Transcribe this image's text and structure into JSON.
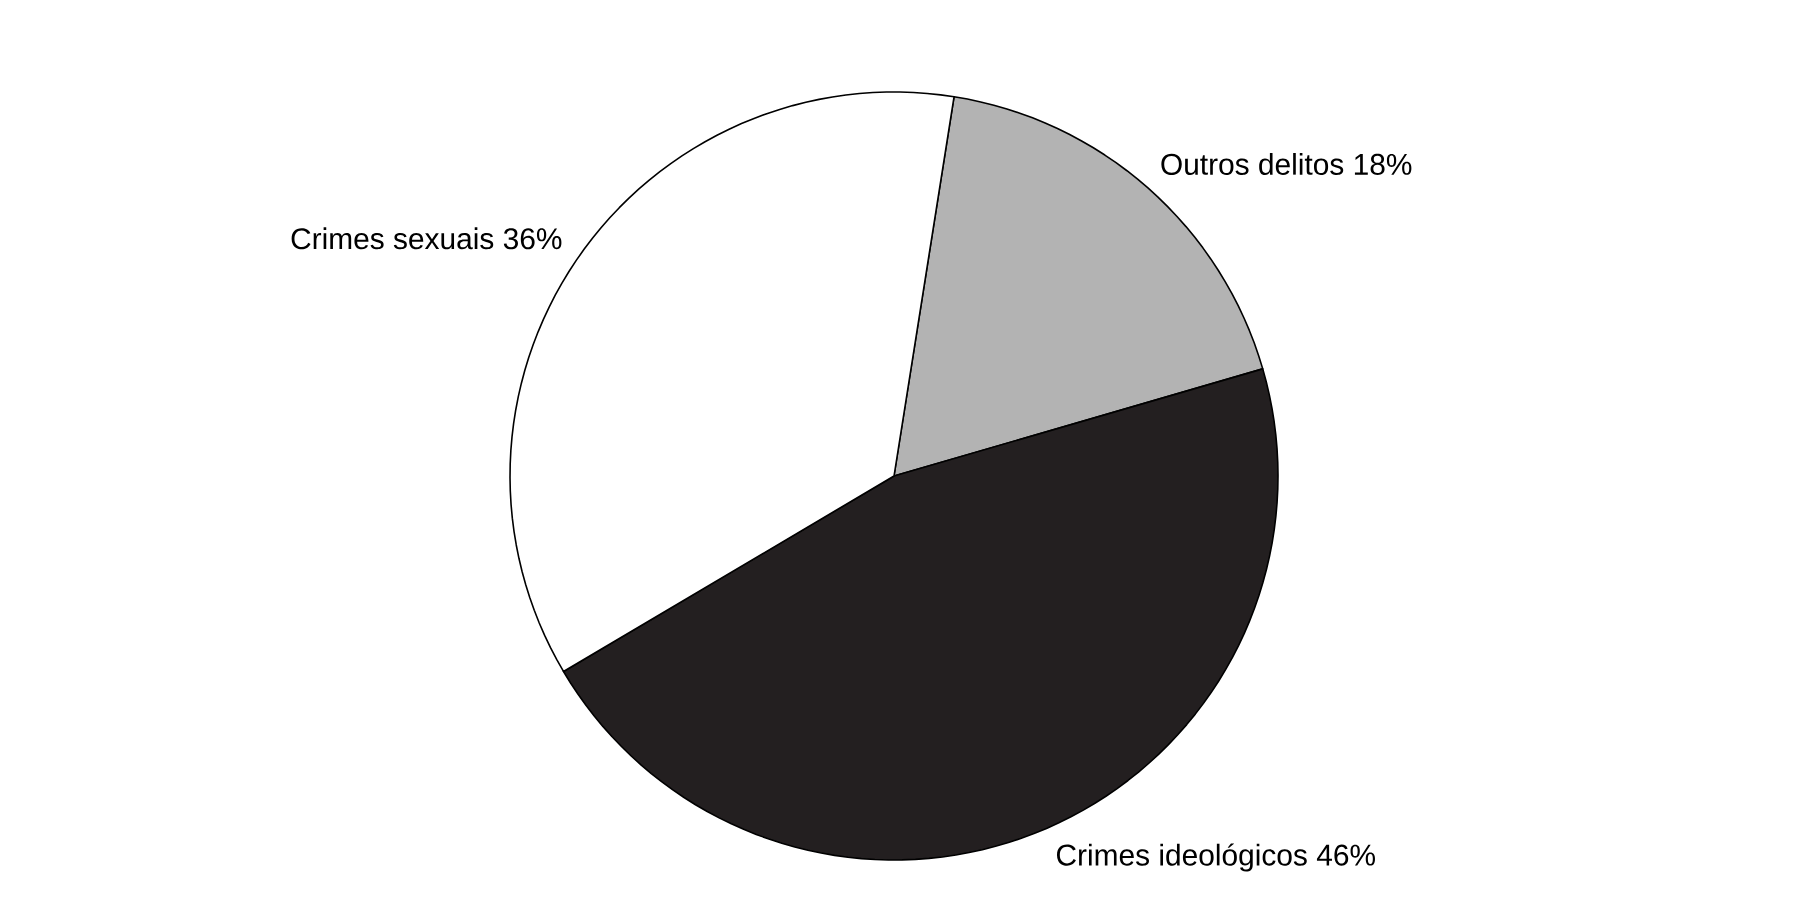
{
  "chart_data": {
    "type": "pie",
    "categories": [
      "Outros delitos",
      "Crimes ideológicos",
      "Crimes sexuais"
    ],
    "values": [
      18,
      46,
      36
    ],
    "value_labels": [
      "18%",
      "46%",
      "36%"
    ],
    "colors": [
      "#b3b3b3",
      "#231f20",
      "#ffffff"
    ]
  }
}
